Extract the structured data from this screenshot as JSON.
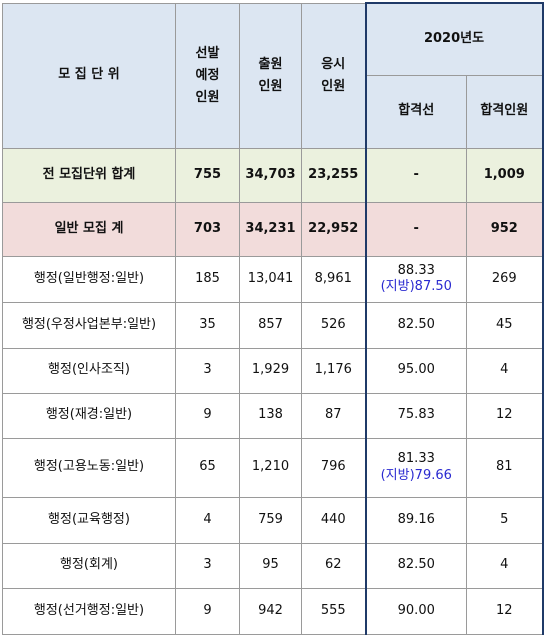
{
  "header": {
    "unit": "모 집 단 위",
    "planned": [
      "선발",
      "예정",
      "인원"
    ],
    "applied": [
      "출원",
      "인원"
    ],
    "tested": [
      "응시",
      "인원"
    ],
    "year": "2020년도",
    "cutoff": "합격선",
    "passers": "합격인원"
  },
  "total": {
    "label": "전 모집단위 합계",
    "planned": "755",
    "applied": "34,703",
    "tested": "23,255",
    "cutoff": "-",
    "passers": "1,009"
  },
  "general": {
    "label": "일반 모집 계",
    "planned": "703",
    "applied": "34,231",
    "tested": "22,952",
    "cutoff": "-",
    "passers": "952"
  },
  "rows": [
    {
      "label": "행정(일반행정:일반)",
      "planned": "185",
      "applied": "13,041",
      "tested": "8,961",
      "cutoff": "88.33",
      "cutoff_local": "(지방)87.50",
      "passers": "269"
    },
    {
      "label": "행정(우정사업본부:일반)",
      "planned": "35",
      "applied": "857",
      "tested": "526",
      "cutoff": "82.50",
      "passers": "45"
    },
    {
      "label": "행정(인사조직)",
      "planned": "3",
      "applied": "1,929",
      "tested": "1,176",
      "cutoff": "95.00",
      "passers": "4"
    },
    {
      "label": "행정(재경:일반)",
      "planned": "9",
      "applied": "138",
      "tested": "87",
      "cutoff": "75.83",
      "passers": "12"
    },
    {
      "label": "행정(고용노동:일반)",
      "planned": "65",
      "applied": "1,210",
      "tested": "796",
      "cutoff": "81.33",
      "cutoff_local": "(지방)79.66",
      "passers": "81"
    },
    {
      "label": "행정(교육행정)",
      "planned": "4",
      "applied": "759",
      "tested": "440",
      "cutoff": "89.16",
      "passers": "5"
    },
    {
      "label": "행정(회계)",
      "planned": "3",
      "applied": "95",
      "tested": "62",
      "cutoff": "82.50",
      "passers": "4"
    },
    {
      "label": "행정(선거행정:일반)",
      "planned": "9",
      "applied": "942",
      "tested": "555",
      "cutoff": "90.00",
      "passers": "12"
    }
  ]
}
